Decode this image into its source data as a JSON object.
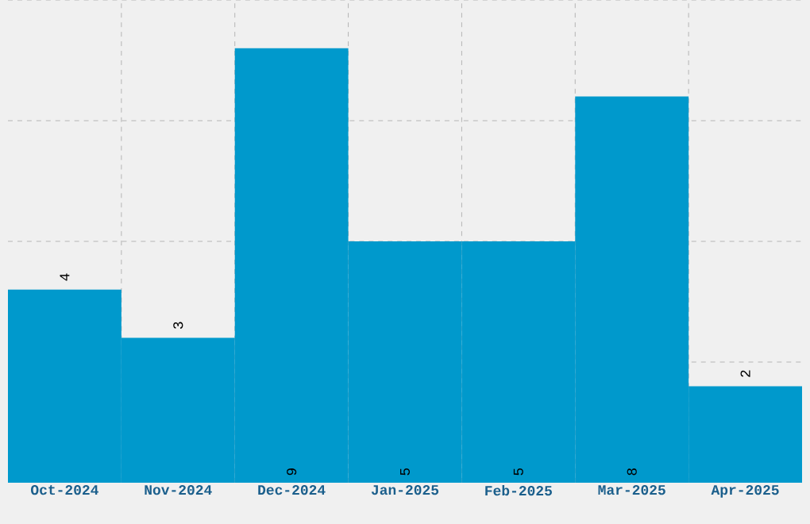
{
  "chart_data": {
    "type": "bar",
    "categories": [
      "Oct-2024",
      "Nov-2024",
      "Dec-2024",
      "Jan-2025",
      "Feb-2025",
      "Mar-2025",
      "Apr-2025"
    ],
    "values": [
      4,
      3,
      9,
      5,
      5,
      8,
      2
    ],
    "color": "#0099cc",
    "data_labels": true,
    "grid": true,
    "ylim": [
      0,
      10
    ],
    "yticks": [
      {
        "value": 2.5,
        "label": null
      },
      {
        "value": 5,
        "label": null
      },
      {
        "value": 7.5,
        "label": null
      },
      {
        "value": 10,
        "label": null
      }
    ]
  }
}
